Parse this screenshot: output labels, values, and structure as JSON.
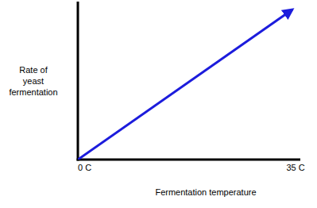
{
  "chart_data": {
    "type": "line",
    "x_label": "Fermentation temperature",
    "y_label": "Rate of yeast fermentation",
    "x": [
      0,
      35
    ],
    "values": [
      0,
      95
    ],
    "color": "#1c1cdc",
    "marker": "arrow",
    "xlim": [
      0,
      35
    ],
    "ylim": [
      0,
      100
    ],
    "xticks": [
      {
        "value": 0,
        "label": "0 C"
      },
      {
        "value": 35,
        "label": "35 C"
      }
    ],
    "yticks": [],
    "tick_labels": "x",
    "grid": false
  }
}
